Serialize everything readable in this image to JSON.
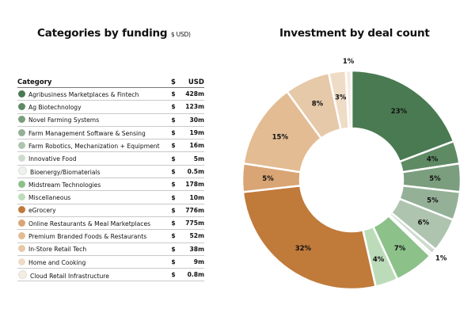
{
  "left_title": "Categories by funding",
  "left_title_unit": "$ USD)",
  "right_title": "Investment by deal count",
  "table": {
    "headers": [
      "Category",
      "$",
      "USD"
    ],
    "rows": [
      {
        "label": "Agribusiness Marketplaces & Fintech",
        "currency": "$",
        "amount": "428m",
        "color": "#4a7a52"
      },
      {
        "label": "Ag Biotechnology",
        "currency": "$",
        "amount": "123m",
        "color": "#5e8a64"
      },
      {
        "label": "Novel Farming Systems",
        "currency": "$",
        "amount": "30m",
        "color": "#7a9e7e"
      },
      {
        "label": "Farm Management Software & Sensing",
        "currency": "$",
        "amount": "19m",
        "color": "#94b197"
      },
      {
        "label": "Farm Robotics, Mechanization + Equipment",
        "currency": "$",
        "amount": "16m",
        "color": "#aec4af"
      },
      {
        "label": "Innovative Food",
        "currency": "$",
        "amount": "5m",
        "color": "#cddbcd"
      },
      {
        "label": "Bioenergy/Biomaterials",
        "currency": "$",
        "amount": "0.5m",
        "color": "#edf2ec"
      },
      {
        "label": "Midstream Technologies",
        "currency": "$",
        "amount": "178m",
        "color": "#8cc18a"
      },
      {
        "label": "Miscellaneous",
        "currency": "$",
        "amount": "10m",
        "color": "#bcdcb9"
      },
      {
        "label": "eGrocery",
        "currency": "$",
        "amount": "776m",
        "color": "#c07a3a"
      },
      {
        "label": "Online Restaurants & Meal Marketplaces",
        "currency": "$",
        "amount": "775m",
        "color": "#d9a574"
      },
      {
        "label": "Premium Branded Foods & Restaurants",
        "currency": "$",
        "amount": "52m",
        "color": "#e3bc93"
      },
      {
        "label": "In-Store Retail Tech",
        "currency": "$",
        "amount": "38m",
        "color": "#e6c9a9"
      },
      {
        "label": "Home and Cooking",
        "currency": "$",
        "amount": "9m",
        "color": "#efdcc6"
      },
      {
        "label": "Cloud Retail Infrastructure",
        "currency": "$",
        "amount": "0.8m",
        "color": "#f5ece2"
      }
    ]
  },
  "chart_data": {
    "type": "pie",
    "title": "Investment by deal count",
    "unit": "%",
    "slices": [
      {
        "value": 23,
        "label": "23%",
        "color": "#4a7a52"
      },
      {
        "value": 4,
        "label": "4%",
        "color": "#5e8a64"
      },
      {
        "value": 5,
        "label": "5%",
        "color": "#7a9e7e"
      },
      {
        "value": 5,
        "label": "5%",
        "color": "#94b197"
      },
      {
        "value": 6,
        "label": "6%",
        "color": "#aec4af"
      },
      {
        "value": 1,
        "label": "1%",
        "color": "#cddbcd"
      },
      {
        "value": 0.5,
        "label": "",
        "color": "#edf2ec"
      },
      {
        "value": 7,
        "label": "7%",
        "color": "#8cc18a"
      },
      {
        "value": 4,
        "label": "4%",
        "color": "#bcdcb9"
      },
      {
        "value": 32,
        "label": "32%",
        "color": "#c07a3a"
      },
      {
        "value": 5,
        "label": "5%",
        "color": "#d9a574"
      },
      {
        "value": 15,
        "label": "15%",
        "color": "#e3bc93"
      },
      {
        "value": 8,
        "label": "8%",
        "color": "#e6c9a9"
      },
      {
        "value": 3,
        "label": "3%",
        "color": "#efdcc6"
      },
      {
        "value": 1,
        "label": "1%",
        "color": "#f5ece2"
      }
    ]
  }
}
